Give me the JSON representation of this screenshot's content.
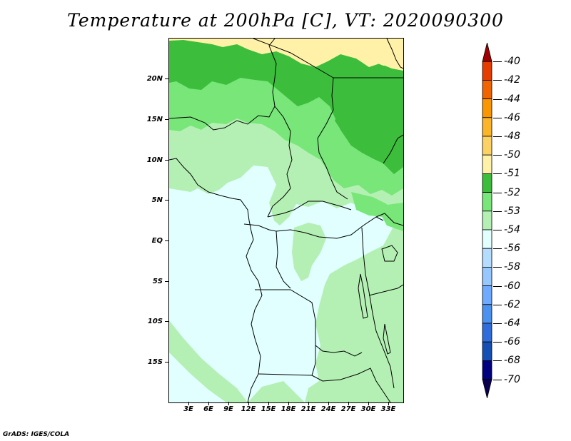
{
  "title": "Temperature at 200hPa [C], VT: 2020090300",
  "credit": "GrADS: IGES/COLA",
  "map": {
    "projection": "lat-lon",
    "field": "air temperature at 200hPa",
    "units": "C",
    "region_extent": {
      "lon_min": 0,
      "lon_max": 35,
      "lat_min": -20,
      "lat_max": 25
    },
    "lat_labels": [
      "20N",
      "15N",
      "10N",
      "5N",
      "EQ",
      "5S",
      "10S",
      "15S"
    ],
    "lat_values": [
      20,
      15,
      10,
      5,
      0,
      -5,
      -10,
      -15
    ],
    "lon_labels": [
      "3E",
      "6E",
      "9E",
      "12E",
      "15E",
      "18E",
      "21E",
      "24E",
      "27E",
      "30E",
      "33E"
    ],
    "lon_values": [
      3,
      6,
      9,
      12,
      15,
      18,
      21,
      24,
      27,
      30,
      33
    ]
  },
  "legend": {
    "labels": [
      "-40",
      "-42",
      "-44",
      "-46",
      "-48",
      "-50",
      "-51",
      "-52",
      "-53",
      "-54",
      "-56",
      "-58",
      "-60",
      "-62",
      "-64",
      "-66",
      "-68",
      "-70"
    ],
    "colors": [
      "#a00000",
      "#e63c00",
      "#f26400",
      "#fa9600",
      "#fcb428",
      "#fcd264",
      "#fff2a8",
      "#3cbe3c",
      "#78e678",
      "#b4f0b4",
      "#e1ffff",
      "#b4dcff",
      "#96c8ff",
      "#6eaaff",
      "#4b91f0",
      "#2f6cdc",
      "#1450b4",
      "#000080",
      "#0a0050"
    ]
  },
  "colors": {
    "above_-51": "#fff2a8",
    "-52_to_-51": "#3cbe3c",
    "-53_to_-52": "#78e678",
    "-54_to_-53": "#b4f0b4",
    "-56_to_-54": "#e1ffff"
  }
}
